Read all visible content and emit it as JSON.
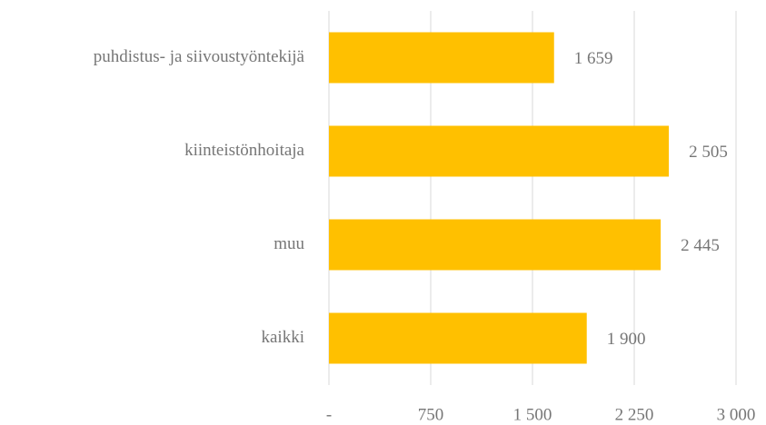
{
  "chart_data": {
    "type": "bar",
    "orientation": "horizontal",
    "categories": [
      "puhdistus- ja siivoustyöntekijä",
      "kiinteistönhoitaja",
      "muu",
      "kaikki"
    ],
    "values": [
      1659,
      2505,
      2445,
      1900
    ],
    "value_labels": [
      "1 659",
      "2 505",
      "2 445",
      "1 900"
    ],
    "color": "#ffc000",
    "xlim": [
      0,
      3000
    ],
    "xticks": [
      {
        "value": 0,
        "label": "-"
      },
      750,
      {
        "value": 1500,
        "label": "1 500"
      },
      {
        "value": 2250,
        "label": "2 250"
      },
      {
        "value": 3000,
        "label": "3 000"
      }
    ],
    "grid": true
  }
}
